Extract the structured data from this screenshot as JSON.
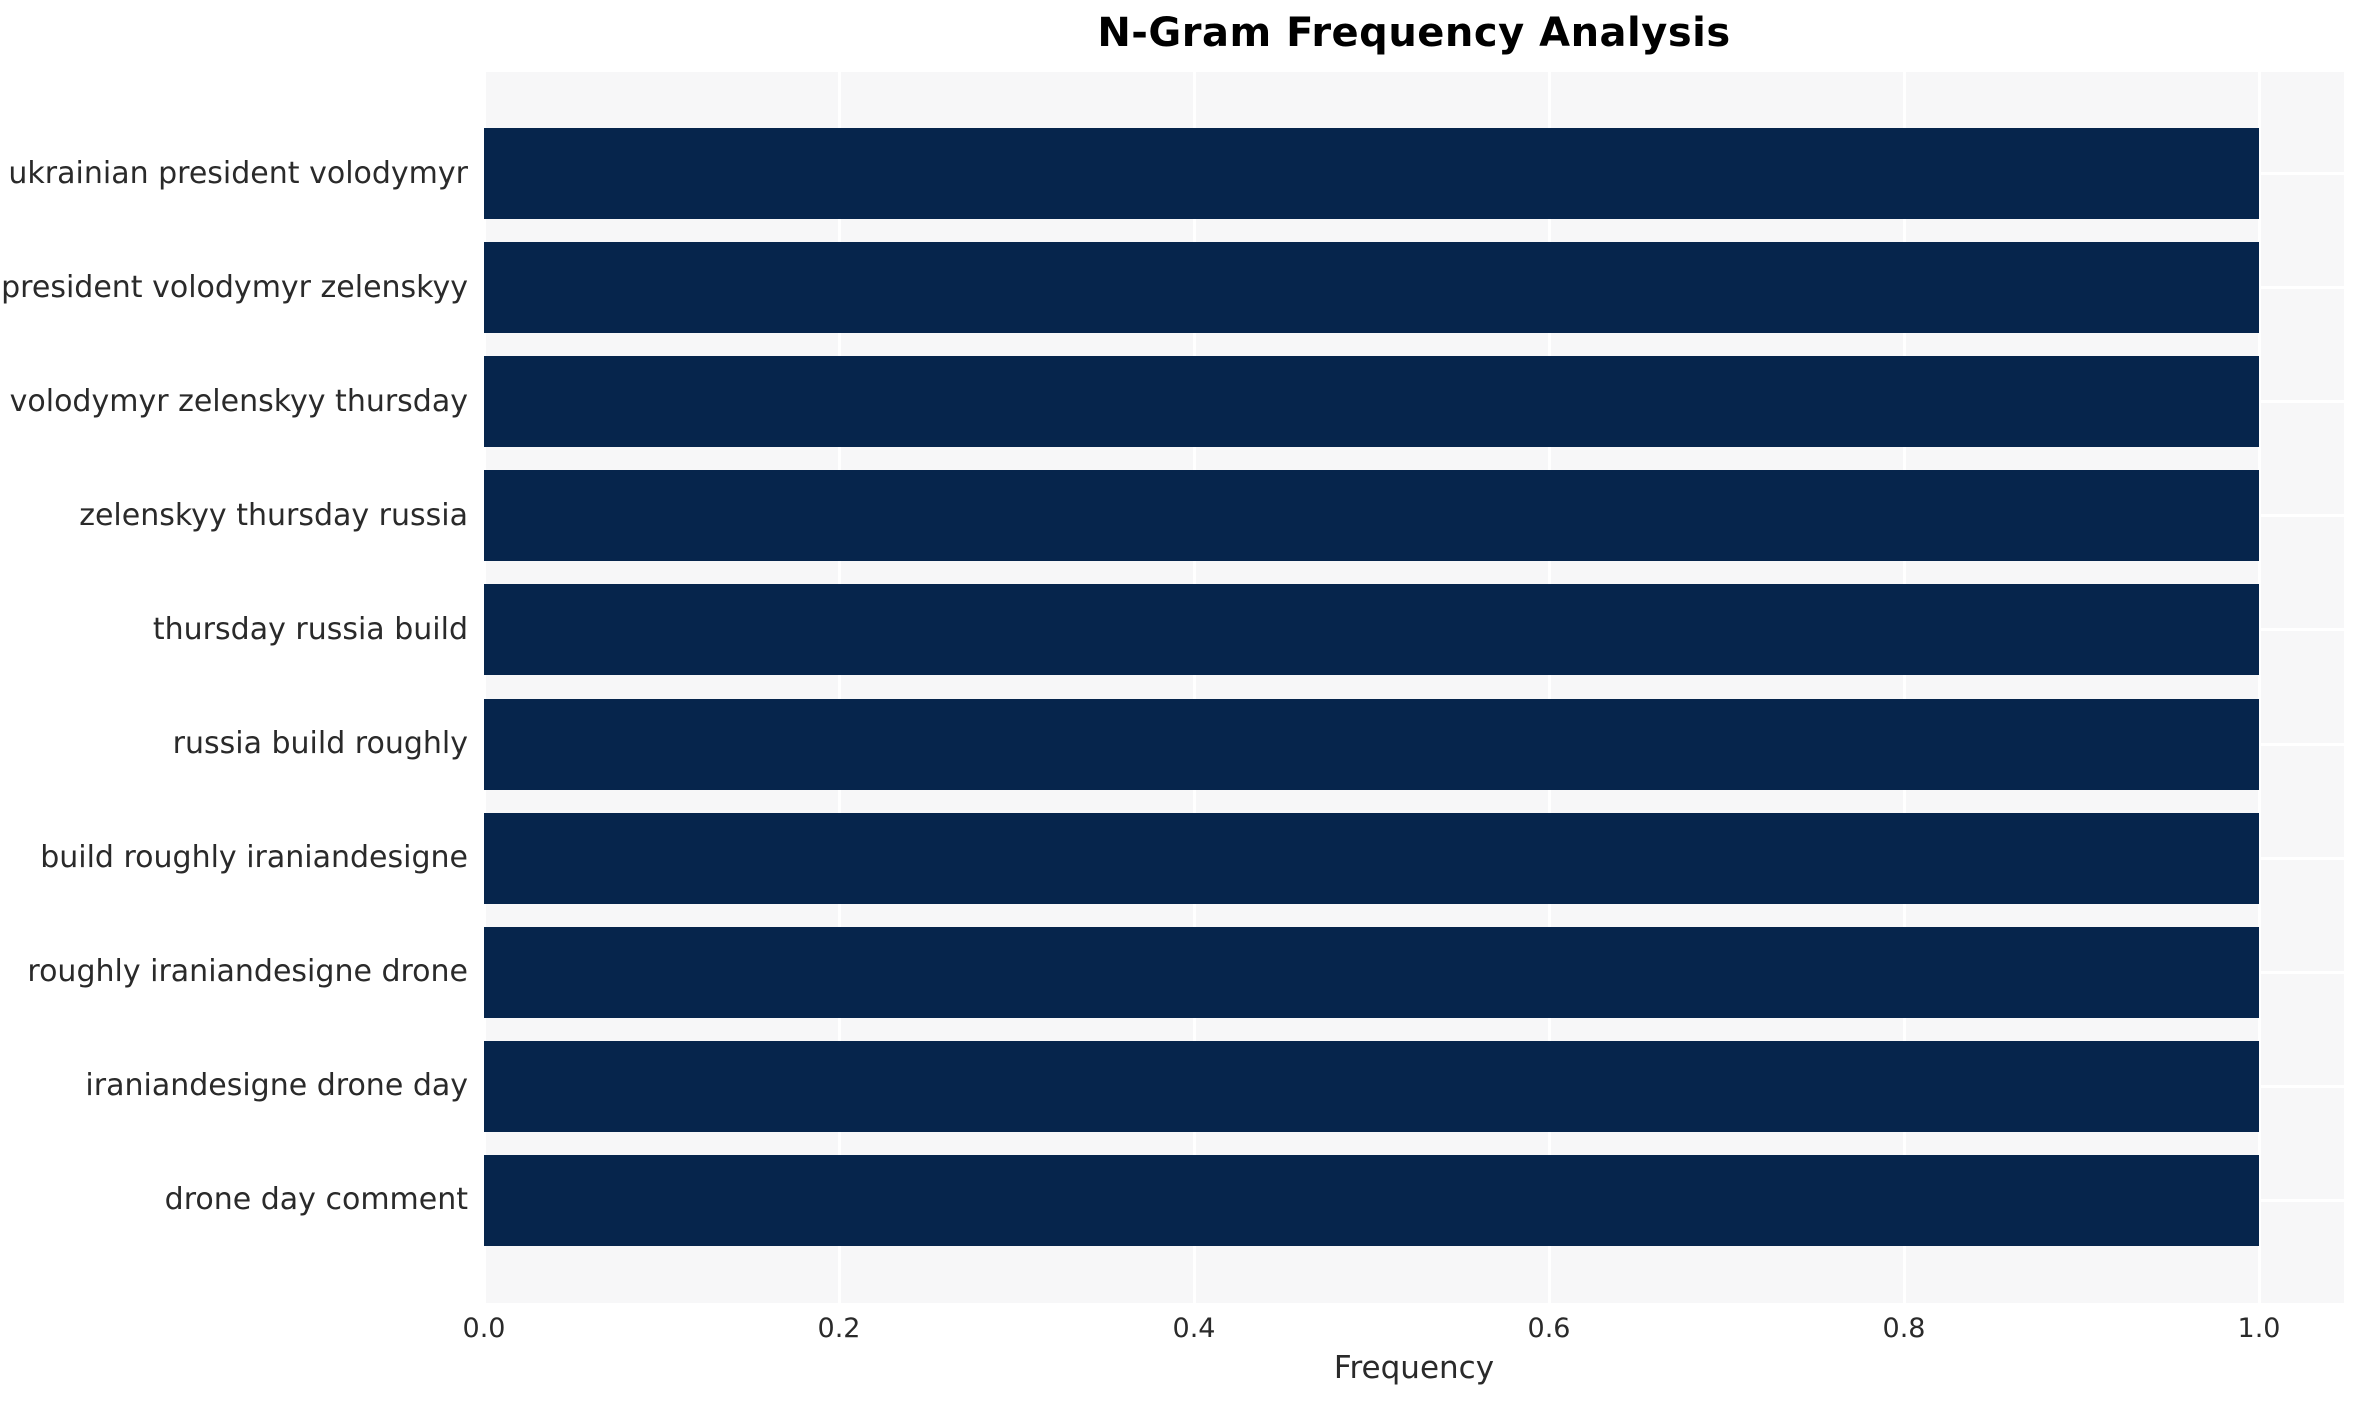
{
  "chart_data": {
    "type": "bar",
    "orientation": "horizontal",
    "title": "N-Gram Frequency Analysis",
    "xlabel": "Frequency",
    "ylabel": "",
    "categories": [
      "ukrainian president volodymyr",
      "president volodymyr zelenskyy",
      "volodymyr zelenskyy thursday",
      "zelenskyy thursday russia",
      "thursday russia build",
      "russia build roughly",
      "build roughly iraniandesigne",
      "roughly iraniandesigne drone",
      "iraniandesigne drone day",
      "drone day comment"
    ],
    "values": [
      1.0,
      1.0,
      1.0,
      1.0,
      1.0,
      1.0,
      1.0,
      1.0,
      1.0,
      1.0
    ],
    "xlim": [
      0,
      1.05
    ],
    "x_ticks": [
      0.0,
      0.2,
      0.4,
      0.6,
      0.8,
      1.0
    ],
    "x_tick_labels": [
      "0.0",
      "0.2",
      "0.4",
      "0.6",
      "0.8",
      "1.0"
    ],
    "grid": true,
    "legend": false,
    "colors": {
      "bar": "#06254c",
      "plot_background": "#f7f7f8",
      "gridline": "#ffffff",
      "tick_text": "#2a2a2a",
      "title_text": "#000000"
    }
  }
}
